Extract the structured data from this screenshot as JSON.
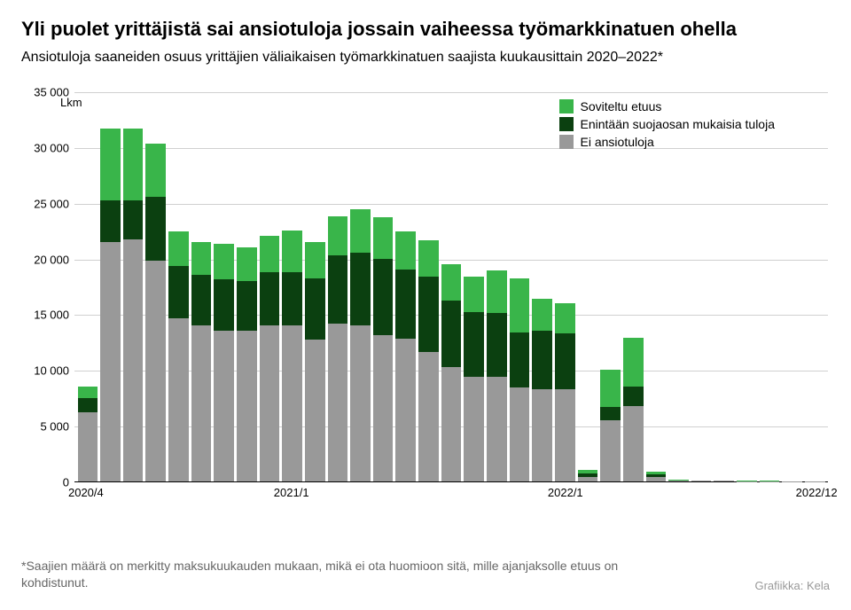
{
  "title": "Yli puolet yrittäjistä sai ansiotuloja jossain vaiheessa työmarkkinatuen ohella",
  "subtitle": "Ansiotuloja saaneiden osuus yrittäjien väliaikaisen työmarkkinatuen saajista kuukausittain 2020–2022*",
  "y_axis_label": "Lkm",
  "footnote": "*Saajien määrä on merkitty maksukuukauden mukaan, mikä ei ota huomioon sitä, mille ajanjaksolle etuus on kohdistunut.",
  "credit": "Grafiikka: Kela",
  "chart": {
    "type": "stacked-bar",
    "ylim": [
      0,
      35000
    ],
    "ytick_step": 5000,
    "y_ticks": [
      0,
      5000,
      10000,
      15000,
      20000,
      25000,
      30000,
      35000
    ],
    "y_tick_labels": [
      "0",
      "5 000",
      "10 000",
      "15 000",
      "20 000",
      "25 000",
      "30 000",
      "35 000"
    ],
    "x_labels": [
      {
        "index": 0,
        "label": "2020/4"
      },
      {
        "index": 9,
        "label": "2021/1"
      },
      {
        "index": 21,
        "label": "2022/1"
      },
      {
        "index": 32,
        "label": "2022/12"
      }
    ],
    "series": [
      {
        "name": "Ei ansiotuloja",
        "color": "#999999"
      },
      {
        "name": "Enintään suojaosan mukaisia tuloja",
        "color": "#0b4010"
      },
      {
        "name": "Soviteltu etuus",
        "color": "#39b54a"
      }
    ],
    "legend_order": [
      "Soviteltu etuus",
      "Enintään suojaosan mukaisia tuloja",
      "Ei ansiotuloja"
    ],
    "background_color": "#ffffff",
    "grid_color": "#d0d0d0",
    "data": [
      {
        "ei": 6200,
        "en": 1300,
        "so": 1000
      },
      {
        "ei": 21500,
        "en": 3700,
        "so": 6500
      },
      {
        "ei": 21700,
        "en": 3500,
        "so": 6500
      },
      {
        "ei": 19800,
        "en": 5700,
        "so": 4800
      },
      {
        "ei": 14600,
        "en": 4700,
        "so": 3100
      },
      {
        "ei": 14000,
        "en": 4500,
        "so": 3000
      },
      {
        "ei": 13500,
        "en": 4600,
        "so": 3200
      },
      {
        "ei": 13500,
        "en": 4500,
        "so": 3000
      },
      {
        "ei": 14000,
        "en": 4800,
        "so": 3200
      },
      {
        "ei": 14000,
        "en": 4800,
        "so": 3700
      },
      {
        "ei": 12700,
        "en": 5500,
        "so": 3300
      },
      {
        "ei": 14200,
        "en": 6100,
        "so": 3500
      },
      {
        "ei": 14000,
        "en": 6500,
        "so": 3900
      },
      {
        "ei": 13100,
        "en": 6900,
        "so": 3700
      },
      {
        "ei": 12800,
        "en": 6200,
        "so": 3400
      },
      {
        "ei": 11600,
        "en": 6800,
        "so": 3200
      },
      {
        "ei": 10300,
        "en": 5900,
        "so": 3300
      },
      {
        "ei": 9400,
        "en": 5800,
        "so": 3200
      },
      {
        "ei": 9400,
        "en": 5700,
        "so": 3800
      },
      {
        "ei": 8400,
        "en": 5000,
        "so": 4800
      },
      {
        "ei": 8300,
        "en": 5200,
        "so": 2900
      },
      {
        "ei": 8300,
        "en": 5000,
        "so": 2700
      },
      {
        "ei": 400,
        "en": 300,
        "so": 300
      },
      {
        "ei": 5500,
        "en": 1200,
        "so": 3300
      },
      {
        "ei": 6800,
        "en": 1700,
        "so": 4400
      },
      {
        "ei": 400,
        "en": 200,
        "so": 300
      },
      {
        "ei": 100,
        "en": 0,
        "so": 100
      },
      {
        "ei": 50,
        "en": 0,
        "so": 50
      },
      {
        "ei": 50,
        "en": 0,
        "so": 50
      },
      {
        "ei": 30,
        "en": 0,
        "so": 30
      },
      {
        "ei": 30,
        "en": 0,
        "so": 30
      },
      {
        "ei": 20,
        "en": 0,
        "so": 20
      },
      {
        "ei": 20,
        "en": 0,
        "so": 20
      }
    ],
    "title_fontsize": 22,
    "subtitle_fontsize": 16,
    "tick_fontsize": 13,
    "legend_fontsize": 14
  }
}
